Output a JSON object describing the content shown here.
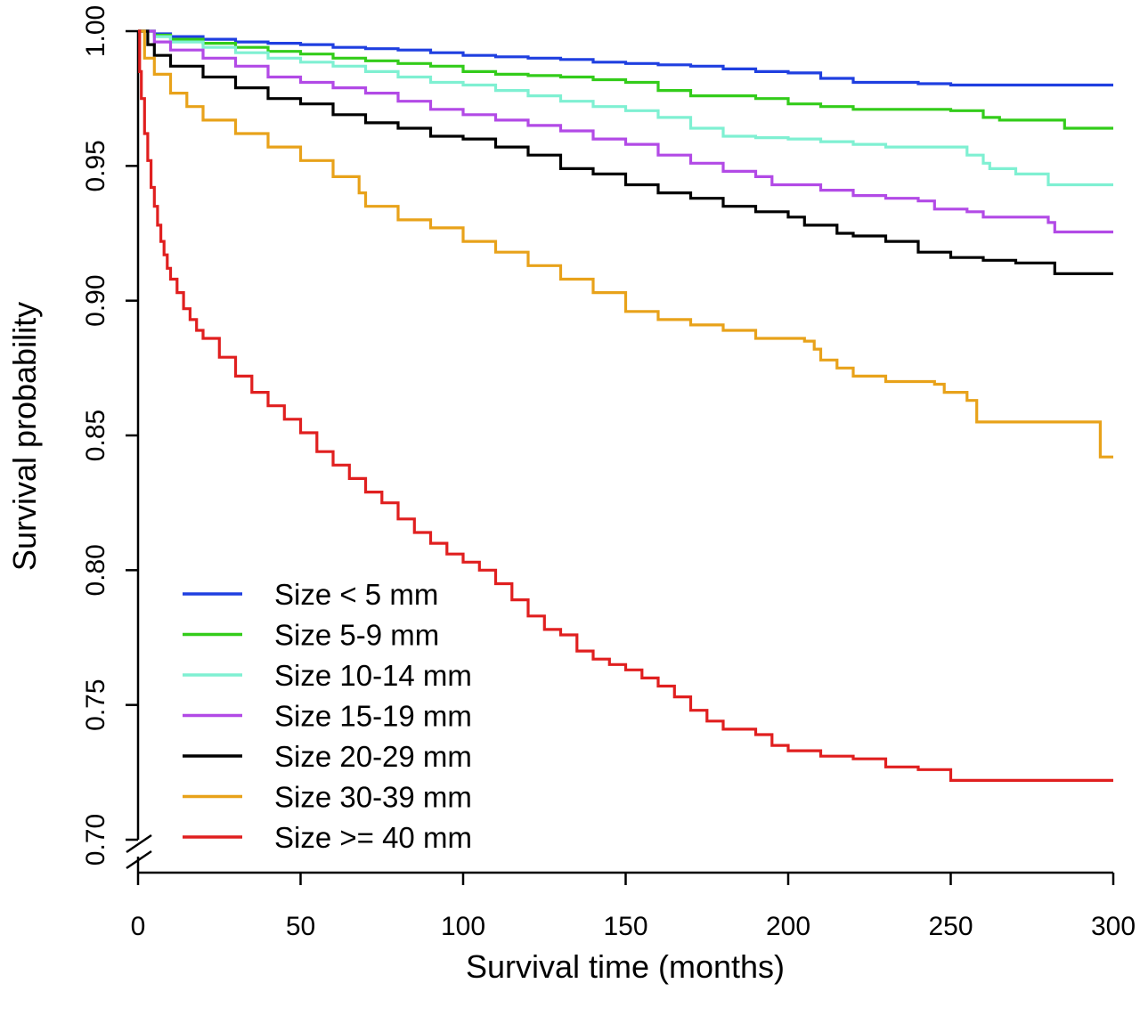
{
  "chart_data": {
    "type": "line",
    "step": true,
    "xlabel": "Survival time (months)",
    "ylabel": "Survival probability",
    "xlim": [
      0,
      300
    ],
    "ylim": [
      0.7,
      1.0
    ],
    "y_axis_break": true,
    "x_ticks": [
      {
        "value": 0,
        "label": "0"
      },
      {
        "value": 50,
        "label": "50"
      },
      {
        "value": 100,
        "label": "100"
      },
      {
        "value": 150,
        "label": "150"
      },
      {
        "value": 200,
        "label": "200"
      },
      {
        "value": 250,
        "label": "250"
      },
      {
        "value": 300,
        "label": "300"
      }
    ],
    "y_ticks": [
      {
        "value": 0.7,
        "label": "0.70"
      },
      {
        "value": 0.75,
        "label": "0.75"
      },
      {
        "value": 0.8,
        "label": "0.80"
      },
      {
        "value": 0.85,
        "label": "0.85"
      },
      {
        "value": 0.9,
        "label": "0.90"
      },
      {
        "value": 0.95,
        "label": "0.95"
      },
      {
        "value": 1.0,
        "label": "1.00"
      }
    ],
    "grid": false,
    "legend_position": "bottom-left",
    "series": [
      {
        "name": "Size < 5 mm",
        "color": "#1f3fe0",
        "points": [
          [
            0,
            1.0
          ],
          [
            5,
            0.999
          ],
          [
            10,
            0.998
          ],
          [
            20,
            0.997
          ],
          [
            30,
            0.996
          ],
          [
            40,
            0.9955
          ],
          [
            50,
            0.995
          ],
          [
            60,
            0.994
          ],
          [
            70,
            0.9935
          ],
          [
            80,
            0.993
          ],
          [
            90,
            0.992
          ],
          [
            100,
            0.991
          ],
          [
            110,
            0.9905
          ],
          [
            120,
            0.99
          ],
          [
            130,
            0.9895
          ],
          [
            140,
            0.9885
          ],
          [
            150,
            0.988
          ],
          [
            160,
            0.9875
          ],
          [
            170,
            0.987
          ],
          [
            180,
            0.986
          ],
          [
            190,
            0.985
          ],
          [
            200,
            0.9845
          ],
          [
            210,
            0.9825
          ],
          [
            220,
            0.981
          ],
          [
            230,
            0.981
          ],
          [
            240,
            0.9805
          ],
          [
            250,
            0.98
          ],
          [
            260,
            0.98
          ],
          [
            280,
            0.98
          ],
          [
            300,
            0.98
          ]
        ]
      },
      {
        "name": "Size 5-9 mm",
        "color": "#33cc1a",
        "points": [
          [
            0,
            1.0
          ],
          [
            5,
            0.9985
          ],
          [
            10,
            0.997
          ],
          [
            20,
            0.9955
          ],
          [
            30,
            0.994
          ],
          [
            40,
            0.9925
          ],
          [
            50,
            0.9915
          ],
          [
            60,
            0.99
          ],
          [
            70,
            0.989
          ],
          [
            80,
            0.988
          ],
          [
            90,
            0.987
          ],
          [
            100,
            0.985
          ],
          [
            110,
            0.984
          ],
          [
            120,
            0.9835
          ],
          [
            130,
            0.983
          ],
          [
            140,
            0.982
          ],
          [
            150,
            0.981
          ],
          [
            160,
            0.978
          ],
          [
            170,
            0.976
          ],
          [
            180,
            0.976
          ],
          [
            190,
            0.975
          ],
          [
            200,
            0.973
          ],
          [
            210,
            0.972
          ],
          [
            220,
            0.971
          ],
          [
            240,
            0.971
          ],
          [
            250,
            0.9705
          ],
          [
            260,
            0.968
          ],
          [
            265,
            0.967
          ],
          [
            280,
            0.967
          ],
          [
            285,
            0.964
          ],
          [
            300,
            0.964
          ]
        ]
      },
      {
        "name": "Size 10-14 mm",
        "color": "#7ff0d2",
        "points": [
          [
            0,
            1.0
          ],
          [
            5,
            0.998
          ],
          [
            10,
            0.996
          ],
          [
            20,
            0.994
          ],
          [
            30,
            0.992
          ],
          [
            40,
            0.99
          ],
          [
            50,
            0.9885
          ],
          [
            60,
            0.987
          ],
          [
            70,
            0.985
          ],
          [
            80,
            0.983
          ],
          [
            90,
            0.981
          ],
          [
            100,
            0.98
          ],
          [
            110,
            0.978
          ],
          [
            120,
            0.976
          ],
          [
            130,
            0.974
          ],
          [
            140,
            0.972
          ],
          [
            150,
            0.9705
          ],
          [
            160,
            0.968
          ],
          [
            170,
            0.964
          ],
          [
            180,
            0.961
          ],
          [
            190,
            0.9605
          ],
          [
            200,
            0.96
          ],
          [
            210,
            0.959
          ],
          [
            220,
            0.958
          ],
          [
            230,
            0.957
          ],
          [
            240,
            0.957
          ],
          [
            255,
            0.954
          ],
          [
            260,
            0.951
          ],
          [
            262,
            0.949
          ],
          [
            270,
            0.947
          ],
          [
            280,
            0.943
          ],
          [
            300,
            0.943
          ]
        ]
      },
      {
        "name": "Size 15-19 mm",
        "color": "#b24ae6",
        "points": [
          [
            0,
            1.0
          ],
          [
            5,
            0.996
          ],
          [
            10,
            0.993
          ],
          [
            20,
            0.99
          ],
          [
            30,
            0.987
          ],
          [
            40,
            0.983
          ],
          [
            50,
            0.981
          ],
          [
            60,
            0.979
          ],
          [
            70,
            0.977
          ],
          [
            80,
            0.974
          ],
          [
            90,
            0.971
          ],
          [
            100,
            0.969
          ],
          [
            110,
            0.967
          ],
          [
            120,
            0.965
          ],
          [
            130,
            0.963
          ],
          [
            140,
            0.96
          ],
          [
            150,
            0.958
          ],
          [
            160,
            0.954
          ],
          [
            170,
            0.951
          ],
          [
            180,
            0.948
          ],
          [
            190,
            0.946
          ],
          [
            195,
            0.943
          ],
          [
            200,
            0.943
          ],
          [
            210,
            0.941
          ],
          [
            220,
            0.939
          ],
          [
            230,
            0.938
          ],
          [
            240,
            0.937
          ],
          [
            245,
            0.934
          ],
          [
            255,
            0.933
          ],
          [
            260,
            0.931
          ],
          [
            280,
            0.929
          ],
          [
            282,
            0.9255
          ],
          [
            300,
            0.9255
          ]
        ]
      },
      {
        "name": "Size 20-29 mm",
        "color": "#000000",
        "points": [
          [
            0,
            1.0
          ],
          [
            3,
            0.995
          ],
          [
            5,
            0.991
          ],
          [
            10,
            0.987
          ],
          [
            20,
            0.983
          ],
          [
            30,
            0.979
          ],
          [
            40,
            0.975
          ],
          [
            50,
            0.973
          ],
          [
            60,
            0.969
          ],
          [
            70,
            0.966
          ],
          [
            80,
            0.964
          ],
          [
            90,
            0.961
          ],
          [
            100,
            0.96
          ],
          [
            110,
            0.957
          ],
          [
            120,
            0.954
          ],
          [
            130,
            0.949
          ],
          [
            140,
            0.947
          ],
          [
            150,
            0.943
          ],
          [
            160,
            0.94
          ],
          [
            170,
            0.938
          ],
          [
            180,
            0.935
          ],
          [
            190,
            0.933
          ],
          [
            200,
            0.931
          ],
          [
            205,
            0.928
          ],
          [
            215,
            0.925
          ],
          [
            220,
            0.924
          ],
          [
            230,
            0.922
          ],
          [
            240,
            0.918
          ],
          [
            250,
            0.916
          ],
          [
            260,
            0.915
          ],
          [
            270,
            0.914
          ],
          [
            280,
            0.914
          ],
          [
            282,
            0.91
          ],
          [
            300,
            0.91
          ]
        ]
      },
      {
        "name": "Size 30-39 mm",
        "color": "#e8a21a",
        "points": [
          [
            0,
            1.0
          ],
          [
            2,
            0.99
          ],
          [
            5,
            0.984
          ],
          [
            10,
            0.977
          ],
          [
            15,
            0.972
          ],
          [
            20,
            0.967
          ],
          [
            30,
            0.962
          ],
          [
            40,
            0.957
          ],
          [
            50,
            0.952
          ],
          [
            60,
            0.946
          ],
          [
            68,
            0.94
          ],
          [
            70,
            0.935
          ],
          [
            80,
            0.93
          ],
          [
            90,
            0.927
          ],
          [
            100,
            0.922
          ],
          [
            110,
            0.918
          ],
          [
            120,
            0.913
          ],
          [
            130,
            0.908
          ],
          [
            140,
            0.903
          ],
          [
            150,
            0.896
          ],
          [
            160,
            0.893
          ],
          [
            170,
            0.891
          ],
          [
            180,
            0.889
          ],
          [
            190,
            0.886
          ],
          [
            200,
            0.886
          ],
          [
            205,
            0.885
          ],
          [
            208,
            0.882
          ],
          [
            210,
            0.878
          ],
          [
            215,
            0.875
          ],
          [
            220,
            0.872
          ],
          [
            230,
            0.87
          ],
          [
            240,
            0.87
          ],
          [
            245,
            0.869
          ],
          [
            248,
            0.866
          ],
          [
            255,
            0.863
          ],
          [
            258,
            0.855
          ],
          [
            270,
            0.855
          ],
          [
            296,
            0.855
          ],
          [
            296,
            0.842
          ],
          [
            300,
            0.842
          ]
        ]
      },
      {
        "name": "Size >= 40 mm",
        "color": "#e01f1f",
        "points": [
          [
            0,
            1.0
          ],
          [
            0.5,
            0.985
          ],
          [
            1,
            0.975
          ],
          [
            2,
            0.962
          ],
          [
            3,
            0.952
          ],
          [
            4,
            0.942
          ],
          [
            5,
            0.935
          ],
          [
            6,
            0.928
          ],
          [
            7,
            0.922
          ],
          [
            8,
            0.917
          ],
          [
            9,
            0.912
          ],
          [
            10,
            0.908
          ],
          [
            12,
            0.903
          ],
          [
            14,
            0.897
          ],
          [
            16,
            0.893
          ],
          [
            18,
            0.889
          ],
          [
            20,
            0.886
          ],
          [
            25,
            0.879
          ],
          [
            30,
            0.872
          ],
          [
            35,
            0.866
          ],
          [
            40,
            0.861
          ],
          [
            45,
            0.856
          ],
          [
            50,
            0.851
          ],
          [
            55,
            0.844
          ],
          [
            60,
            0.839
          ],
          [
            65,
            0.834
          ],
          [
            70,
            0.829
          ],
          [
            75,
            0.825
          ],
          [
            80,
            0.819
          ],
          [
            85,
            0.814
          ],
          [
            90,
            0.81
          ],
          [
            95,
            0.806
          ],
          [
            100,
            0.803
          ],
          [
            105,
            0.8
          ],
          [
            110,
            0.795
          ],
          [
            115,
            0.789
          ],
          [
            120,
            0.783
          ],
          [
            125,
            0.778
          ],
          [
            130,
            0.776
          ],
          [
            135,
            0.77
          ],
          [
            140,
            0.767
          ],
          [
            145,
            0.765
          ],
          [
            150,
            0.763
          ],
          [
            155,
            0.76
          ],
          [
            160,
            0.757
          ],
          [
            165,
            0.753
          ],
          [
            170,
            0.748
          ],
          [
            175,
            0.744
          ],
          [
            180,
            0.741
          ],
          [
            190,
            0.739
          ],
          [
            195,
            0.735
          ],
          [
            200,
            0.733
          ],
          [
            210,
            0.731
          ],
          [
            220,
            0.73
          ],
          [
            230,
            0.727
          ],
          [
            240,
            0.726
          ],
          [
            250,
            0.722
          ],
          [
            260,
            0.722
          ],
          [
            300,
            0.722
          ]
        ]
      }
    ]
  }
}
